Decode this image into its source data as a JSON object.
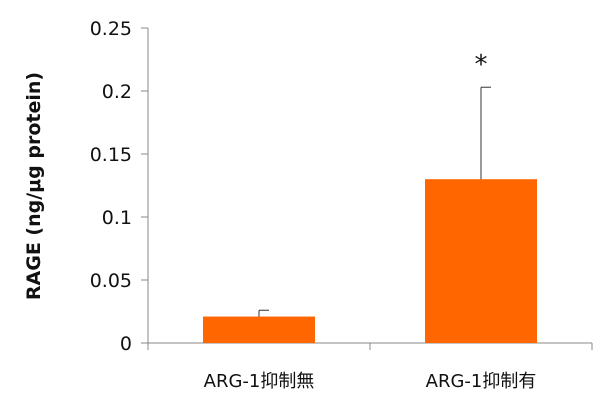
{
  "chart_data": {
    "type": "bar",
    "title": "",
    "xlabel": "",
    "ylabel": "RAGE (ng/μg protein)",
    "categories": [
      "ARG-1抑制無",
      "ARG-1抑制有"
    ],
    "values": [
      0.021,
      0.13
    ],
    "error_upper": [
      0.005,
      0.073
    ],
    "annotations": [
      "",
      "*"
    ],
    "ylim": [
      0,
      0.25
    ],
    "yticks": [
      0,
      0.05,
      0.1,
      0.15,
      0.2,
      0.25
    ],
    "ytick_labels": [
      "0",
      "0.05",
      "0.1",
      "0.15",
      "0.2",
      "0.25"
    ],
    "grid": false,
    "legend": "none",
    "bar_color": "#ff6600",
    "axis_color": "#888888"
  }
}
